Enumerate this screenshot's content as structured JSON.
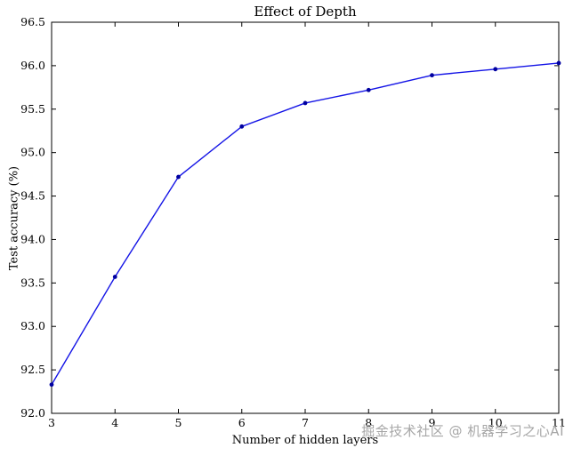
{
  "watermark": "掘金技术社区 @ 机器学习之心AI",
  "chart_data": {
    "type": "line",
    "title": "Effect of Depth",
    "xlabel": "Number of hidden layers",
    "ylabel": "Test accuracy (%)",
    "x": [
      3,
      4,
      5,
      6,
      7,
      8,
      9,
      10,
      11
    ],
    "y": [
      92.33,
      93.57,
      94.72,
      95.3,
      95.57,
      95.72,
      95.89,
      95.96,
      96.03
    ],
    "x_ticks": [
      3,
      4,
      5,
      6,
      7,
      8,
      9,
      10,
      11
    ],
    "x_tick_labels": [
      "3",
      "4",
      "5",
      "6",
      "7",
      "8",
      "9",
      "10",
      "11"
    ],
    "y_ticks": [
      92.0,
      92.5,
      93.0,
      93.5,
      94.0,
      94.5,
      95.0,
      95.5,
      96.0,
      96.5
    ],
    "y_tick_labels": [
      "92.0",
      "92.5",
      "93.0",
      "93.5",
      "94.0",
      "94.5",
      "95.0",
      "95.5",
      "96.0",
      "96.5"
    ],
    "xlim": [
      3,
      11
    ],
    "ylim": [
      92.0,
      96.5
    ],
    "grid": false,
    "legend": "none",
    "line_color": "#1414e6",
    "marker_color": "#0000a0",
    "frame_color": "#000000",
    "tick_label_color": "#000000"
  }
}
